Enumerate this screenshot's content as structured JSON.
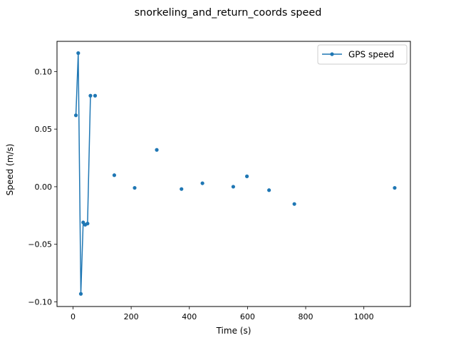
{
  "figure": {
    "title": "snorkeling_and_return_coords speed"
  },
  "colors": {
    "series": "#1f77b4",
    "axes": "#000000",
    "background": "#ffffff"
  },
  "chart_data": {
    "type": "line",
    "title": "snorkeling_and_return_coords speed",
    "xlabel": "Time (s)",
    "ylabel": "Speed (m/s)",
    "xlim": [
      -55,
      1160
    ],
    "ylim": [
      -0.104,
      0.1262
    ],
    "xticks": [
      0,
      200,
      400,
      600,
      800,
      1000
    ],
    "xtick_labels": [
      "0",
      "200",
      "400",
      "600",
      "800",
      "1000"
    ],
    "yticks": [
      -0.1,
      -0.05,
      0.0,
      0.05,
      0.1
    ],
    "ytick_labels": [
      "−0.10",
      "−0.05",
      "0.00",
      "0.05",
      "0.10"
    ],
    "grid": false,
    "legend_position": "top-right",
    "series": [
      {
        "name": "GPS speed",
        "marker": "dot",
        "connected_segments": [
          [
            {
              "x": 10,
              "y": 0.062
            },
            {
              "x": 18,
              "y": 0.116
            },
            {
              "x": 27,
              "y": -0.093
            },
            {
              "x": 35,
              "y": -0.031
            },
            {
              "x": 42,
              "y": -0.033
            },
            {
              "x": 50,
              "y": -0.032
            },
            {
              "x": 60,
              "y": 0.079
            }
          ]
        ],
        "isolated_points": [
          {
            "x": 76,
            "y": 0.079
          },
          {
            "x": 142,
            "y": 0.01
          },
          {
            "x": 212,
            "y": -0.001
          },
          {
            "x": 288,
            "y": 0.032
          },
          {
            "x": 373,
            "y": -0.002
          },
          {
            "x": 445,
            "y": 0.003
          },
          {
            "x": 551,
            "y": 0.0
          },
          {
            "x": 598,
            "y": 0.009
          },
          {
            "x": 674,
            "y": -0.003
          },
          {
            "x": 761,
            "y": -0.015
          },
          {
            "x": 1106,
            "y": -0.001
          }
        ]
      }
    ]
  }
}
